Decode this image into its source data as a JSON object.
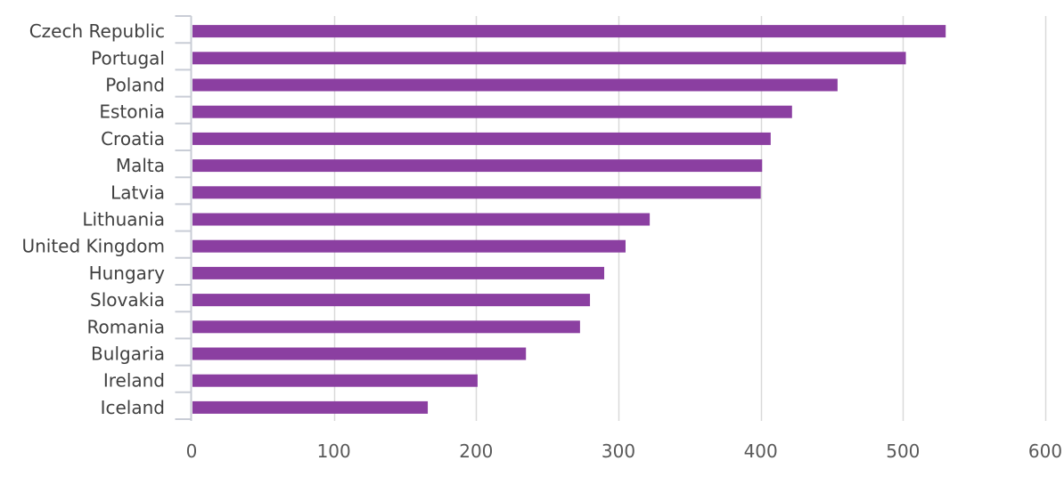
{
  "chart_data": {
    "type": "bar",
    "orientation": "horizontal",
    "categories": [
      "Czech Republic",
      "Portugal",
      "Poland",
      "Estonia",
      "Croatia",
      "Malta",
      "Latvia",
      "Lithuania",
      "United Kingdom",
      "Hungary",
      "Slovakia",
      "Romania",
      "Bulgaria",
      "Ireland",
      "Iceland"
    ],
    "values": [
      530,
      502,
      454,
      422,
      407,
      401,
      400,
      322,
      305,
      290,
      280,
      273,
      235,
      201,
      166
    ],
    "xlim": [
      0,
      600
    ],
    "xticks": [
      0,
      100,
      200,
      300,
      400,
      500,
      600
    ],
    "grid": true,
    "legend": "none",
    "colors": {
      "bar": "#8B3FA1",
      "grid": "#D9D9D9",
      "axis": "#C9CDD6"
    }
  }
}
